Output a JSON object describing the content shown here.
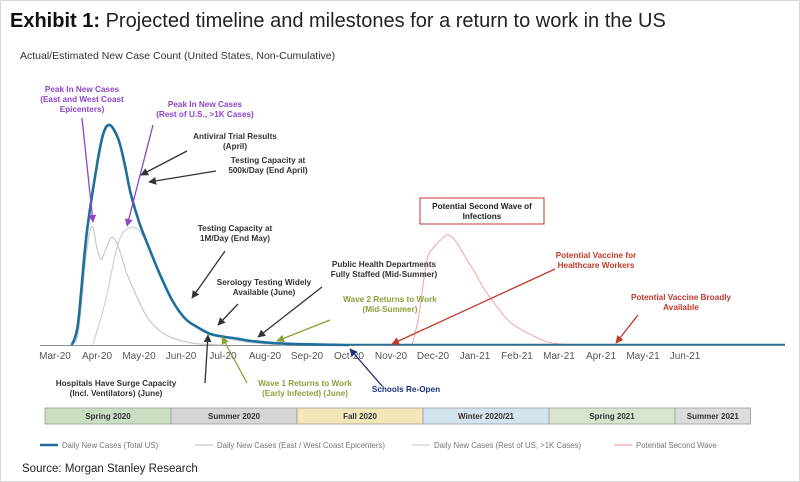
{
  "header": {
    "exhibit_label": "Exhibit 1:",
    "title": "Projected timeline and milestones for a return to work in the US",
    "subtitle": "Actual/Estimated New Case Count (United States, Non-Cumulative)"
  },
  "source": "Source: Morgan Stanley Research",
  "colors": {
    "total": "#1f6e9c",
    "epicenters": "#c8c8c8",
    "rest": "#c6d4dc",
    "second_wave": "#f2a3a8",
    "purple": "#8e44c9",
    "dark": "#333333",
    "green": "#8aa13a",
    "navy": "#1f2f7a",
    "red": "#c0392b"
  },
  "chart_data": {
    "type": "line",
    "x": [
      "Mar-20",
      "Apr-20",
      "May-20",
      "Jun-20",
      "Jul-20",
      "Aug-20",
      "Sep-20",
      "Oct-20",
      "Nov-20",
      "Dec-20",
      "Jan-21",
      "Feb-21",
      "Mar-21",
      "Apr-21",
      "May-21",
      "Jun-21"
    ],
    "ylim": [
      0,
      100
    ],
    "series": [
      {
        "name": "Daily New Cases (Total US)",
        "color": "#1f6e9c",
        "points": [
          [
            0.4,
            0
          ],
          [
            0.55,
            10
          ],
          [
            0.75,
            50
          ],
          [
            1.0,
            82
          ],
          [
            1.15,
            96
          ],
          [
            1.3,
            100
          ],
          [
            1.5,
            94
          ],
          [
            1.65,
            83
          ],
          [
            1.8,
            69
          ],
          [
            2.0,
            56
          ],
          [
            2.2,
            46
          ],
          [
            2.5,
            32
          ],
          [
            2.8,
            20
          ],
          [
            3.1,
            12
          ],
          [
            3.4,
            8
          ],
          [
            3.7,
            5
          ],
          [
            4.0,
            3.8
          ],
          [
            4.3,
            3
          ],
          [
            4.6,
            2
          ],
          [
            5.0,
            1.2
          ],
          [
            5.5,
            0.6
          ],
          [
            6.0,
            0.3
          ],
          [
            7.0,
            0
          ]
        ]
      },
      {
        "name": "Daily New Cases (East / West Coast Epicenters)",
        "color": "#c8c8c8",
        "points": [
          [
            0.4,
            0
          ],
          [
            0.55,
            5
          ],
          [
            0.75,
            42
          ],
          [
            0.88,
            54
          ],
          [
            1.0,
            44
          ],
          [
            1.1,
            39
          ],
          [
            1.2,
            43
          ],
          [
            1.35,
            49
          ],
          [
            1.5,
            45
          ],
          [
            1.7,
            33
          ],
          [
            1.9,
            24
          ],
          [
            2.15,
            14
          ],
          [
            2.4,
            8
          ],
          [
            2.7,
            4
          ],
          [
            3.0,
            2
          ],
          [
            3.4,
            0.5
          ],
          [
            4.0,
            0
          ]
        ]
      },
      {
        "name": "Daily New Cases (Rest of US, >1K Cases)",
        "color": "#c6d4dc",
        "points": [
          [
            0.9,
            0
          ],
          [
            1.2,
            20
          ],
          [
            1.5,
            46
          ],
          [
            1.75,
            53
          ],
          [
            2.0,
            52
          ],
          [
            2.25,
            44
          ],
          [
            2.5,
            32
          ],
          [
            2.8,
            20
          ],
          [
            3.1,
            12
          ],
          [
            3.5,
            7
          ],
          [
            4.0,
            3.5
          ],
          [
            4.5,
            1.5
          ],
          [
            5.0,
            0.5
          ],
          [
            5.5,
            0
          ]
        ]
      },
      {
        "name": "Potential Second Wave",
        "color": "#f2a3a8",
        "points": [
          [
            8.5,
            0
          ],
          [
            8.65,
            12
          ],
          [
            8.85,
            38
          ],
          [
            9.0,
            44
          ],
          [
            9.2,
            48
          ],
          [
            9.35,
            50
          ],
          [
            9.55,
            47
          ],
          [
            9.8,
            39
          ],
          [
            10.0,
            33
          ],
          [
            10.2,
            26
          ],
          [
            10.5,
            18
          ],
          [
            10.8,
            11
          ],
          [
            11.1,
            7
          ],
          [
            11.4,
            4
          ],
          [
            11.7,
            1.5
          ],
          [
            12.0,
            0.5
          ],
          [
            12.3,
            0
          ]
        ]
      }
    ],
    "seasons": [
      {
        "label": "Spring 2020",
        "start": 0,
        "end": 3,
        "color": "#c9dfc2"
      },
      {
        "label": "Summer 2020",
        "start": 3,
        "end": 6,
        "color": "#d6d6d6"
      },
      {
        "label": "Fall 2020",
        "start": 6,
        "end": 9,
        "color": "#f3e6bb"
      },
      {
        "label": "Winter 2020/21",
        "start": 9,
        "end": 12,
        "color": "#d3e4f1"
      },
      {
        "label": "Spring 2021",
        "start": 12,
        "end": 15,
        "color": "#d6e5cc"
      },
      {
        "label": "Summer 2021",
        "start": 15,
        "end": 16.8,
        "color": "#dcdcdc"
      }
    ],
    "annotations": [
      {
        "lines": [
          "Peak In New Cases",
          "(East and West Coast",
          "Epicenters)"
        ],
        "color": "purple"
      },
      {
        "lines": [
          "Peak In New Cases",
          "(Rest of U.S., >1K Cases)"
        ],
        "color": "purple"
      },
      {
        "lines": [
          "Antiviral  Trial Results",
          "(April)"
        ],
        "color": "dark"
      },
      {
        "lines": [
          "Testing Capacity at",
          "500k/Day  (End April)"
        ],
        "color": "dark"
      },
      {
        "lines": [
          "Testing Capacity at",
          "1M/Day (End May)"
        ],
        "color": "dark"
      },
      {
        "lines": [
          "Serology Testing Widely",
          "Available (June)"
        ],
        "color": "dark"
      },
      {
        "lines": [
          "Public Health Departments",
          "Fully Staffed (Mid-Summer)"
        ],
        "color": "dark"
      },
      {
        "lines": [
          "Wave 2 Returns to Work",
          "(Mid-Summer)"
        ],
        "color": "green"
      },
      {
        "lines": [
          "Hospitals Have Surge Capacity",
          "(Incl. Ventilators) (June)"
        ],
        "color": "dark"
      },
      {
        "lines": [
          "Wave 1 Returns to Work",
          "(Early Infected) (June)"
        ],
        "color": "green"
      },
      {
        "lines": [
          "Schools Re-Open"
        ],
        "color": "navy"
      },
      {
        "lines": [
          "Potential Vaccine for",
          "Healthcare Workers"
        ],
        "color": "red"
      },
      {
        "lines": [
          "Potential Vaccine Broadly",
          "Available"
        ],
        "color": "red"
      }
    ],
    "callout": {
      "lines": [
        "Potential Second Wave of",
        "Infections"
      ]
    },
    "legend": "bottom"
  }
}
